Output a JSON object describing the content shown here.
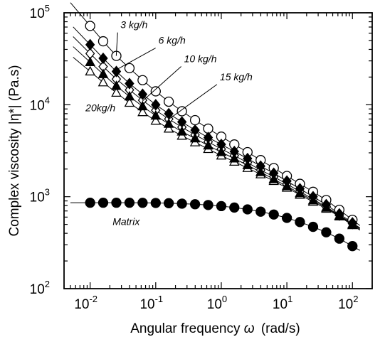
{
  "chart_data": {
    "type": "scatter",
    "xlabel": "Angular frequency",
    "xlabel_symbol": "ω",
    "xlabel_unit": "(rad/s)",
    "ylabel": "Complex viscosity |η*| (Pa.s)",
    "x_scale": "log",
    "y_scale": "log",
    "xlim": [
      0.004,
      200
    ],
    "ylim": [
      100,
      100000
    ],
    "x_ticks": [
      0.01,
      0.1,
      1,
      10,
      100
    ],
    "x_tick_labels": [
      {
        "base": "10",
        "exp": "-2"
      },
      {
        "base": "10",
        "exp": "-1"
      },
      {
        "base": "10",
        "exp": "0"
      },
      {
        "base": "10",
        "exp": "1"
      },
      {
        "base": "10",
        "exp": "2"
      }
    ],
    "y_ticks": [
      100,
      1000,
      10000,
      100000
    ],
    "y_tick_labels": [
      {
        "base": "10",
        "exp": "2"
      },
      {
        "base": "10",
        "exp": "3"
      },
      {
        "base": "10",
        "exp": "4"
      },
      {
        "base": "10",
        "exp": "5"
      }
    ],
    "grid": false,
    "legend": "none",
    "x": [
      0.01,
      0.0158,
      0.0251,
      0.0398,
      0.0631,
      0.1,
      0.158,
      0.251,
      0.398,
      0.631,
      1,
      1.58,
      2.51,
      3.98,
      6.31,
      10,
      15.8,
      25.1,
      39.8,
      63.1,
      100
    ],
    "series": [
      {
        "name": "3 kg/h",
        "marker": "circle-open",
        "fit_from": 0.005,
        "values": [
          72000,
          49000,
          34000,
          25000,
          18500,
          14000,
          10800,
          8500,
          6800,
          5500,
          4500,
          3700,
          3050,
          2500,
          2050,
          1680,
          1380,
          1130,
          920,
          720,
          560
        ]
      },
      {
        "name": "6 kg/h",
        "marker": "diamond-filled",
        "fit_from": 0.0055,
        "values": [
          45000,
          32000,
          23000,
          17000,
          13000,
          10000,
          8000,
          6500,
          5300,
          4400,
          3700,
          3100,
          2600,
          2150,
          1800,
          1480,
          1220,
          1000,
          820,
          650,
          520
        ]
      },
      {
        "name": "10 kg/h",
        "marker": "diamond-open",
        "fit_from": 0.0055,
        "values": [
          36000,
          26000,
          19000,
          14500,
          11200,
          8700,
          7000,
          5700,
          4700,
          3950,
          3300,
          2800,
          2350,
          1950,
          1650,
          1370,
          1140,
          940,
          780,
          630,
          510
        ]
      },
      {
        "name": "15 kg/h",
        "marker": "triangle-filled",
        "fit_from": 0.0055,
        "values": [
          29000,
          21500,
          16000,
          12300,
          9600,
          7600,
          6200,
          5100,
          4300,
          3600,
          3050,
          2600,
          2200,
          1850,
          1550,
          1300,
          1090,
          910,
          760,
          620,
          500
        ]
      },
      {
        "name": "20kg/h",
        "marker": "triangle-open",
        "fit_from": 0.0055,
        "values": [
          23000,
          17500,
          13500,
          10500,
          8300,
          6700,
          5500,
          4600,
          3900,
          3300,
          2800,
          2400,
          2050,
          1750,
          1480,
          1250,
          1050,
          880,
          740,
          610,
          490
        ]
      },
      {
        "name": "Matrix",
        "marker": "circle-filled",
        "fit_from": 0.005,
        "values": [
          860,
          860,
          860,
          860,
          858,
          855,
          850,
          840,
          828,
          812,
          790,
          762,
          728,
          688,
          640,
          588,
          530,
          470,
          410,
          350,
          290
        ]
      }
    ],
    "annotations": [
      {
        "text": "3 kg/h",
        "x": 0.029,
        "y": 68000,
        "pointer_to": [
          0.025,
          34000
        ]
      },
      {
        "text": "6 kg/h",
        "x": 0.11,
        "y": 46000,
        "pointer_to": [
          0.025,
          24000
        ]
      },
      {
        "text": "10 kg/h",
        "x": 0.27,
        "y": 29000,
        "pointer_to": [
          0.063,
          11000
        ]
      },
      {
        "text": "15 kg/h",
        "x": 0.95,
        "y": 18500,
        "pointer_to": [
          0.16,
          7000
        ]
      },
      {
        "text": "20kg/h",
        "x": 0.0085,
        "y": 8500,
        "pointer_to": null
      },
      {
        "text": "Matrix",
        "x": 0.022,
        "y": 490,
        "pointer_to": null
      }
    ]
  }
}
